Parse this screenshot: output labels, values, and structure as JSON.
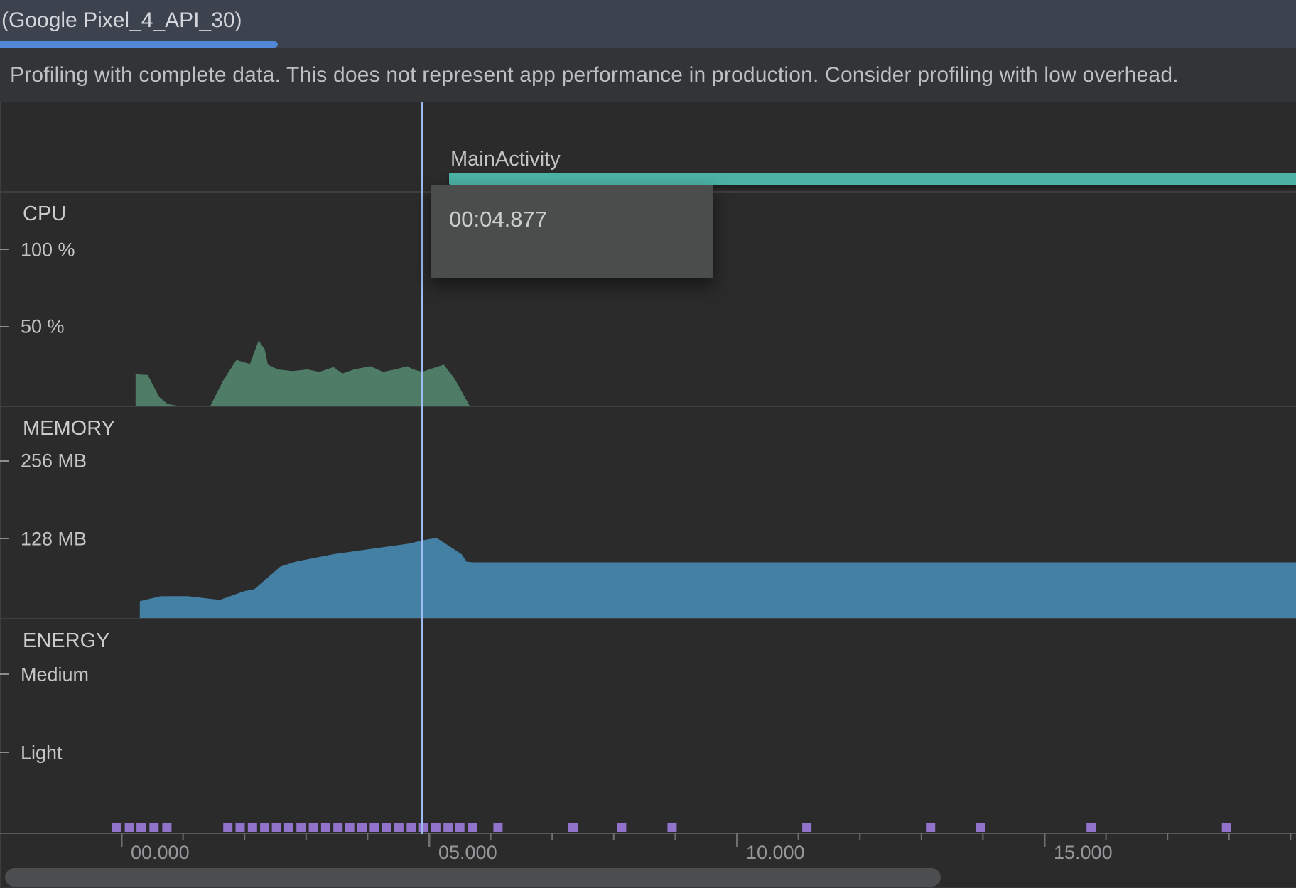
{
  "tab_bar": {
    "device_tab": "(Google Pixel_4_API_30)"
  },
  "banner": {
    "message": "Profiling with complete data. This does not represent app performance in production. Consider profiling with low overhead."
  },
  "event_timeline": {
    "activity_label": "MainActivity"
  },
  "tooltip": {
    "time": "00:04.877"
  },
  "sections": {
    "cpu": {
      "title": "CPU",
      "axis_labels": [
        "100 %",
        "50 %"
      ]
    },
    "memory": {
      "title": "MEMORY",
      "axis_labels": [
        "256 MB",
        "128 MB"
      ]
    },
    "energy": {
      "title": "ENERGY",
      "axis_labels": [
        "Medium",
        "Light"
      ]
    }
  },
  "time_axis": {
    "labels": [
      "00.000",
      "05.000",
      "10.000",
      "15.000"
    ],
    "major_ticks_s": [
      0,
      5,
      10,
      15
    ],
    "minor_ticks_s": [
      1,
      2,
      3,
      4,
      6,
      7,
      8,
      9,
      11,
      12,
      13,
      14,
      16,
      17,
      18,
      19
    ]
  },
  "colors": {
    "bg_chart": "#2b2b2b",
    "bg_tabbar": "#3c434e",
    "bg_banner": "#323436",
    "tab_underline": "#5289d6",
    "teal_activity": "#4cb2a6",
    "cpu_green": "#4f7c67",
    "memory_blue": "#4380a4",
    "energy_purple": "#9173cb",
    "cursor_blue": "#85aaf0",
    "axis_line": "#58595a",
    "tick_mark": "#6f7071",
    "left_dash": "#8b8c8d",
    "tooltip_bg": "#4b4d4d",
    "scrollbar": "#4b4d4f"
  },
  "chart_data": [
    {
      "type": "area",
      "name": "cpu-usage",
      "title": "CPU",
      "ylabel": "%",
      "ylim": [
        0,
        100
      ],
      "ytick_labels": [
        "100 %",
        "50 %"
      ],
      "x_unit": "seconds",
      "points": [
        [
          0.24,
          0
        ],
        [
          0.24,
          20
        ],
        [
          0.44,
          19.5
        ],
        [
          0.62,
          6
        ],
        [
          0.76,
          1.5
        ],
        [
          0.98,
          0
        ],
        [
          1.45,
          0
        ],
        [
          1.67,
          16.5
        ],
        [
          1.88,
          29
        ],
        [
          2.0,
          27.5
        ],
        [
          2.1,
          26.5
        ],
        [
          2.24,
          41
        ],
        [
          2.34,
          35.5
        ],
        [
          2.39,
          26
        ],
        [
          2.55,
          23
        ],
        [
          2.79,
          22
        ],
        [
          3.03,
          23
        ],
        [
          3.23,
          21.5
        ],
        [
          3.46,
          24.5
        ],
        [
          3.6,
          20.5
        ],
        [
          3.79,
          23
        ],
        [
          4.06,
          25
        ],
        [
          4.26,
          21.5
        ],
        [
          4.46,
          23
        ],
        [
          4.65,
          25
        ],
        [
          4.76,
          23
        ],
        [
          4.9,
          21.5
        ],
        [
          5.01,
          23
        ],
        [
          5.25,
          26
        ],
        [
          5.42,
          17.5
        ],
        [
          5.66,
          1
        ],
        [
          5.68,
          0
        ]
      ]
    },
    {
      "type": "area",
      "name": "memory-usage",
      "title": "MEMORY",
      "ylabel": "MB",
      "ylim": [
        0,
        256
      ],
      "ytick_labels": [
        "256 MB",
        "128 MB"
      ],
      "x_unit": "seconds",
      "points": [
        [
          0.31,
          28
        ],
        [
          0.65,
          36
        ],
        [
          1.09,
          36
        ],
        [
          1.61,
          30
        ],
        [
          2.01,
          44
        ],
        [
          2.17,
          47
        ],
        [
          2.59,
          83
        ],
        [
          2.84,
          91
        ],
        [
          3.45,
          103
        ],
        [
          4.18,
          113
        ],
        [
          4.7,
          120
        ],
        [
          4.9,
          125
        ],
        [
          5.13,
          129
        ],
        [
          5.54,
          103
        ],
        [
          5.62,
          91
        ],
        [
          5.73,
          90
        ],
        [
          19.2,
          90
        ]
      ]
    },
    {
      "type": "scatter",
      "name": "energy-system-events",
      "title": "ENERGY",
      "ytick_labels": [
        "Medium",
        "Light"
      ],
      "x_unit": "seconds",
      "event_times_s": [
        -0.07,
        0.14,
        0.33,
        0.54,
        0.75,
        1.74,
        1.94,
        2.14,
        2.34,
        2.53,
        2.73,
        2.93,
        3.13,
        3.33,
        3.53,
        3.72,
        3.92,
        4.12,
        4.32,
        4.52,
        4.72,
        4.92,
        5.12,
        5.32,
        5.51,
        5.71,
        6.13,
        7.35,
        8.14,
        8.96,
        11.15,
        13.16,
        13.97,
        15.77,
        17.97
      ]
    }
  ],
  "cursor": {
    "time_s": 4.877
  }
}
